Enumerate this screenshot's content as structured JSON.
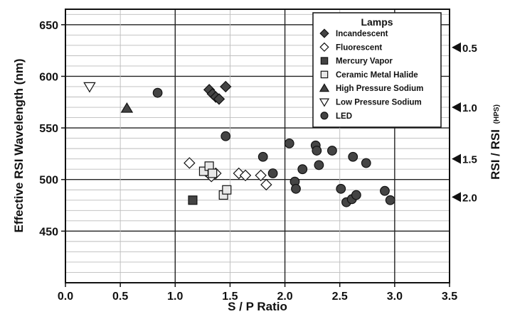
{
  "chart_data": {
    "type": "scatter",
    "xlabel": "S / P Ratio",
    "ylabel": "Effective RSI Wavelength (nm)",
    "y2label": "RSI / RSI",
    "y2label_sub": "(HPS)",
    "xlim": [
      0,
      3.5
    ],
    "ylim": [
      400,
      665
    ],
    "x_ticks": [
      "0.0",
      "0.5",
      "1.0",
      "1.5",
      "2.0",
      "2.5",
      "3.0",
      "3.5"
    ],
    "y_ticks": [
      "450",
      "500",
      "550",
      "600",
      "650"
    ],
    "grid": true,
    "legend_title": "Lamps",
    "legend_position": "top-right",
    "right_axis_markers": [
      {
        "label": "0.5",
        "y": 628
      },
      {
        "label": "1.0",
        "y": 570
      },
      {
        "label": "1.5",
        "y": 520
      },
      {
        "label": "2.0",
        "y": 483
      }
    ],
    "series": [
      {
        "name": "Incandescent",
        "marker": "diamond",
        "fill": "#444444",
        "points": [
          [
            1.31,
            587
          ],
          [
            1.34,
            583
          ],
          [
            1.37,
            580
          ],
          [
            1.4,
            578
          ],
          [
            1.46,
            590
          ]
        ]
      },
      {
        "name": "Fluorescent",
        "marker": "diamond",
        "fill": "#ffffff",
        "points": [
          [
            1.13,
            516
          ],
          [
            1.28,
            508
          ],
          [
            1.33,
            503
          ],
          [
            1.37,
            506
          ],
          [
            1.58,
            506
          ],
          [
            1.64,
            504
          ],
          [
            1.78,
            504
          ],
          [
            1.83,
            495
          ]
        ]
      },
      {
        "name": "Mercury Vapor",
        "marker": "square",
        "fill": "#444444",
        "points": [
          [
            1.16,
            480
          ]
        ]
      },
      {
        "name": "Ceramic Metal Halide",
        "marker": "square",
        "fill": "#e8e8e8",
        "points": [
          [
            1.26,
            508
          ],
          [
            1.31,
            513
          ],
          [
            1.34,
            506
          ],
          [
            1.44,
            485
          ],
          [
            1.47,
            490
          ]
        ]
      },
      {
        "name": "High Pressure Sodium",
        "marker": "triangle-up",
        "fill": "#444444",
        "points": [
          [
            0.56,
            569
          ]
        ]
      },
      {
        "name": "Low Pressure Sodium",
        "marker": "triangle-down",
        "fill": "#ffffff",
        "points": [
          [
            0.22,
            590
          ]
        ]
      },
      {
        "name": "LED",
        "marker": "circle",
        "fill": "#444444",
        "points": [
          [
            0.84,
            584
          ],
          [
            1.46,
            542
          ],
          [
            1.8,
            522
          ],
          [
            1.89,
            506
          ],
          [
            2.04,
            535
          ],
          [
            2.09,
            498
          ],
          [
            2.1,
            491
          ],
          [
            2.16,
            510
          ],
          [
            2.28,
            533
          ],
          [
            2.29,
            528
          ],
          [
            2.31,
            514
          ],
          [
            2.43,
            528
          ],
          [
            2.51,
            491
          ],
          [
            2.56,
            478
          ],
          [
            2.61,
            481
          ],
          [
            2.62,
            522
          ],
          [
            2.65,
            485
          ],
          [
            2.74,
            516
          ],
          [
            2.91,
            489
          ],
          [
            2.96,
            480
          ]
        ]
      }
    ]
  }
}
